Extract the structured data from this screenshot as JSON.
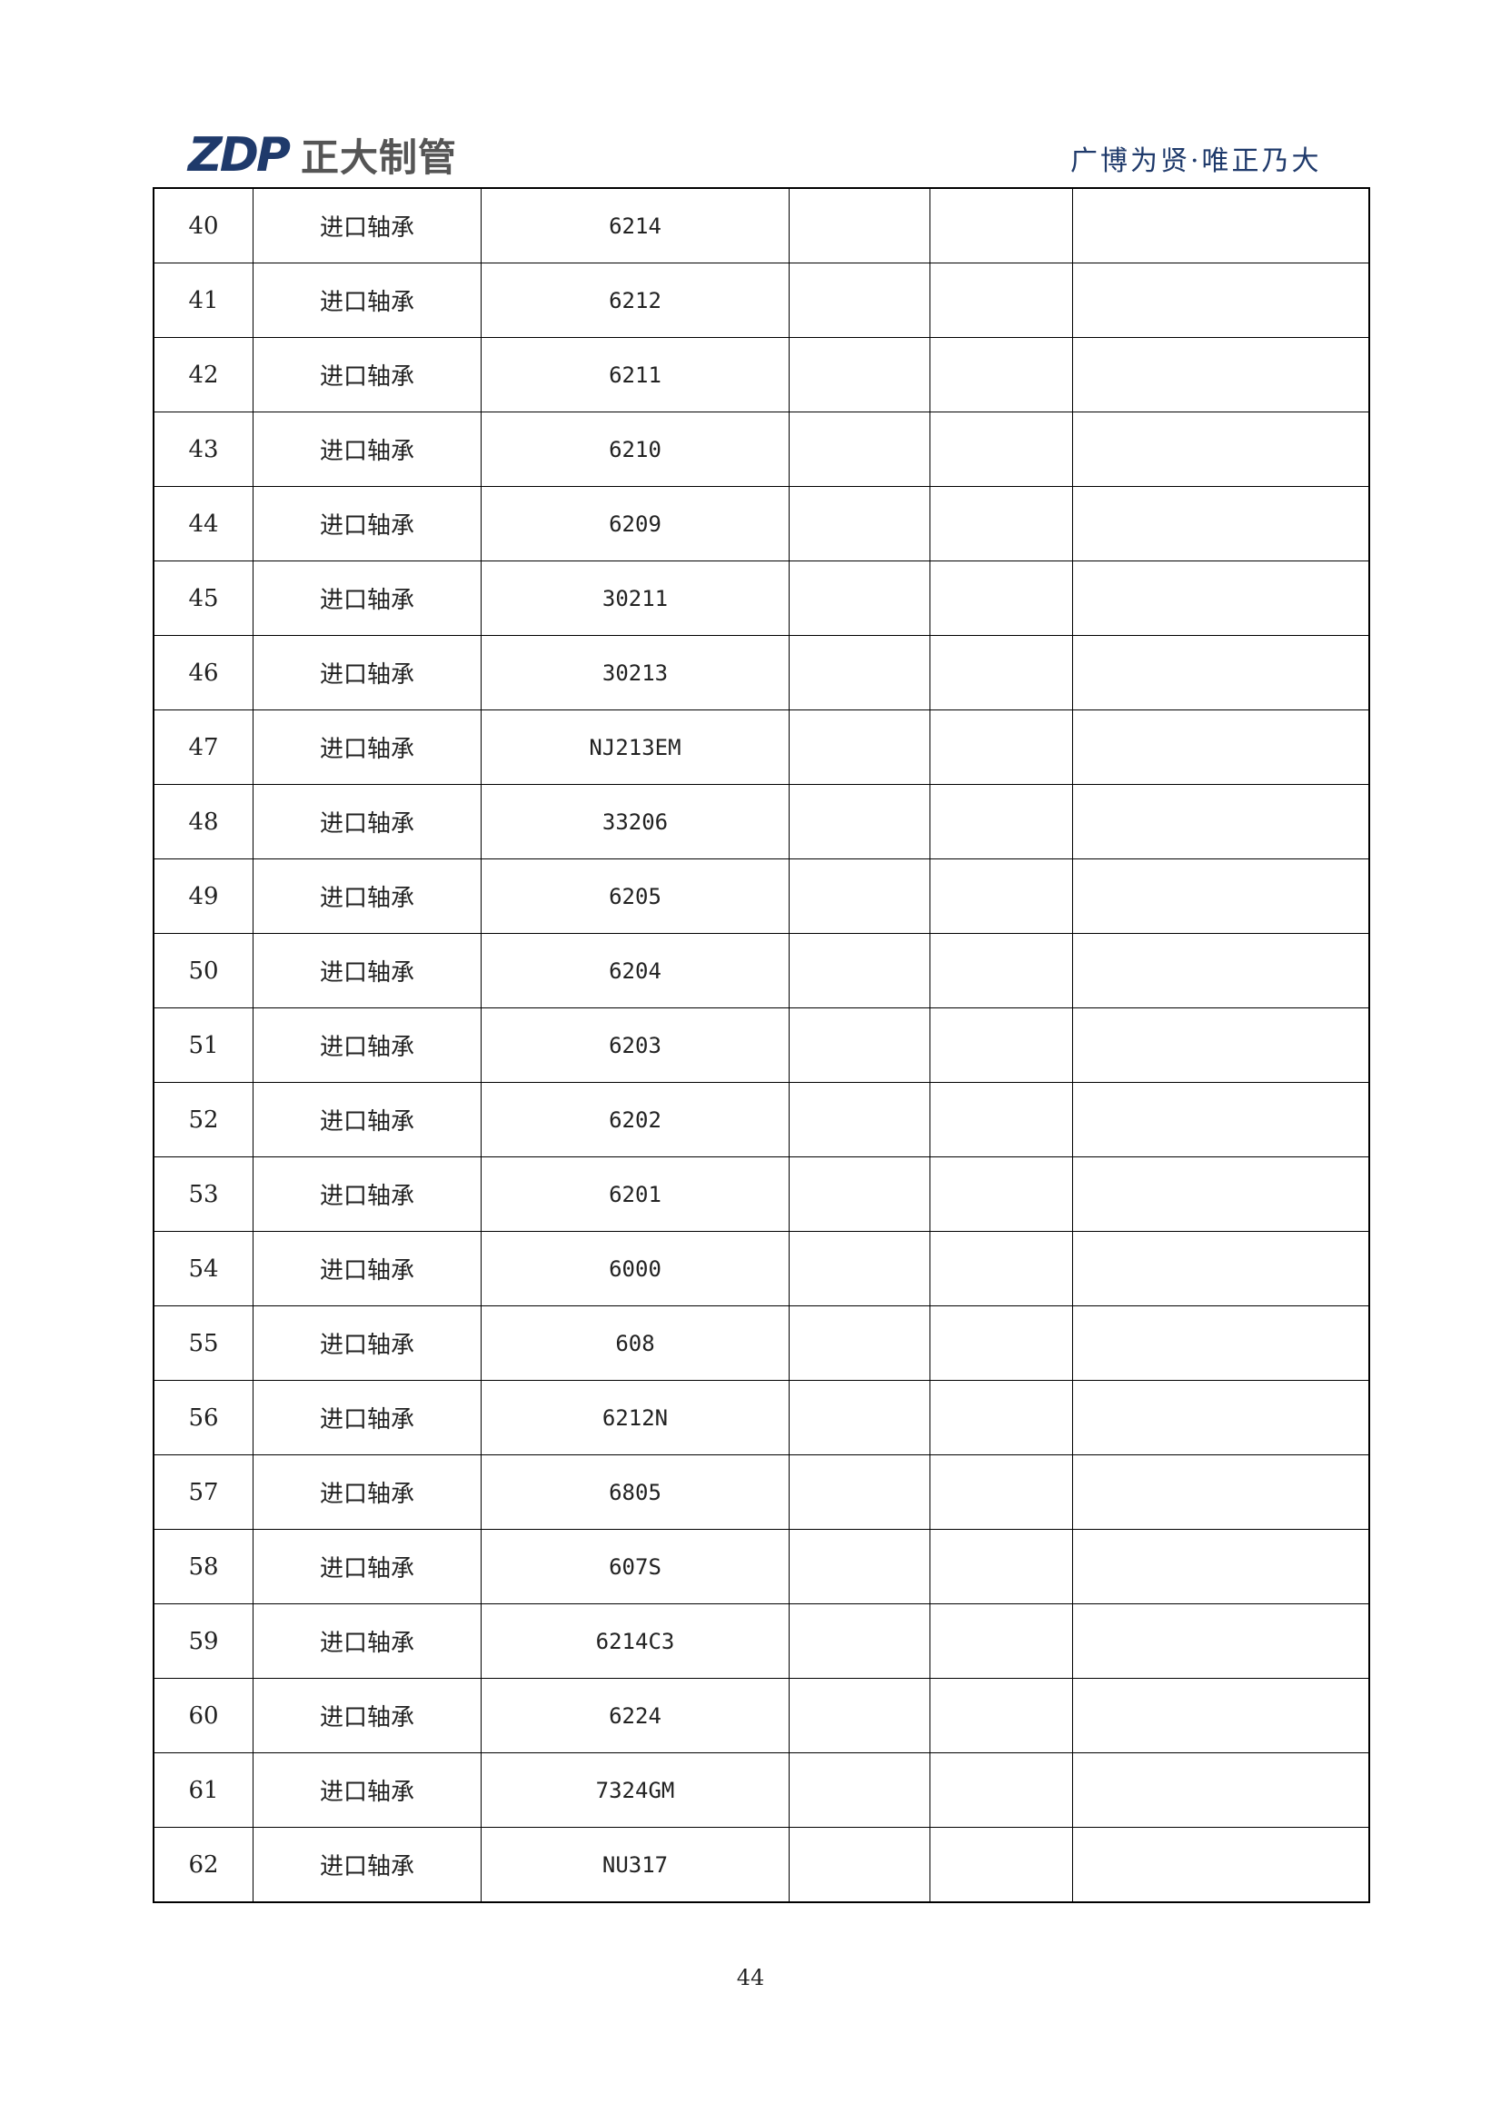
{
  "header": {
    "logo_mark": "ZDP",
    "logo_name": "正大制管",
    "slogan": "广博为贤·唯正乃大",
    "colors": {
      "brand": "#1f3a6b",
      "logo_text": "#555555"
    }
  },
  "table": {
    "rows": [
      {
        "no": "40",
        "name": "进口轴承",
        "model": "6214"
      },
      {
        "no": "41",
        "name": "进口轴承",
        "model": "6212"
      },
      {
        "no": "42",
        "name": "进口轴承",
        "model": "6211"
      },
      {
        "no": "43",
        "name": "进口轴承",
        "model": "6210"
      },
      {
        "no": "44",
        "name": "进口轴承",
        "model": "6209"
      },
      {
        "no": "45",
        "name": "进口轴承",
        "model": "30211"
      },
      {
        "no": "46",
        "name": "进口轴承",
        "model": "30213"
      },
      {
        "no": "47",
        "name": "进口轴承",
        "model": "NJ213EM"
      },
      {
        "no": "48",
        "name": "进口轴承",
        "model": "33206"
      },
      {
        "no": "49",
        "name": "进口轴承",
        "model": "6205"
      },
      {
        "no": "50",
        "name": "进口轴承",
        "model": "6204"
      },
      {
        "no": "51",
        "name": "进口轴承",
        "model": "6203"
      },
      {
        "no": "52",
        "name": "进口轴承",
        "model": "6202"
      },
      {
        "no": "53",
        "name": "进口轴承",
        "model": "6201"
      },
      {
        "no": "54",
        "name": "进口轴承",
        "model": "6000"
      },
      {
        "no": "55",
        "name": "进口轴承",
        "model": "608"
      },
      {
        "no": "56",
        "name": "进口轴承",
        "model": "6212N"
      },
      {
        "no": "57",
        "name": "进口轴承",
        "model": "6805"
      },
      {
        "no": "58",
        "name": "进口轴承",
        "model": "607S"
      },
      {
        "no": "59",
        "name": "进口轴承",
        "model": "6214C3"
      },
      {
        "no": "60",
        "name": "进口轴承",
        "model": "6224"
      },
      {
        "no": "61",
        "name": "进口轴承",
        "model": "7324GM"
      },
      {
        "no": "62",
        "name": "进口轴承",
        "model": "NU317"
      }
    ]
  },
  "footer": {
    "page_number": "44"
  }
}
